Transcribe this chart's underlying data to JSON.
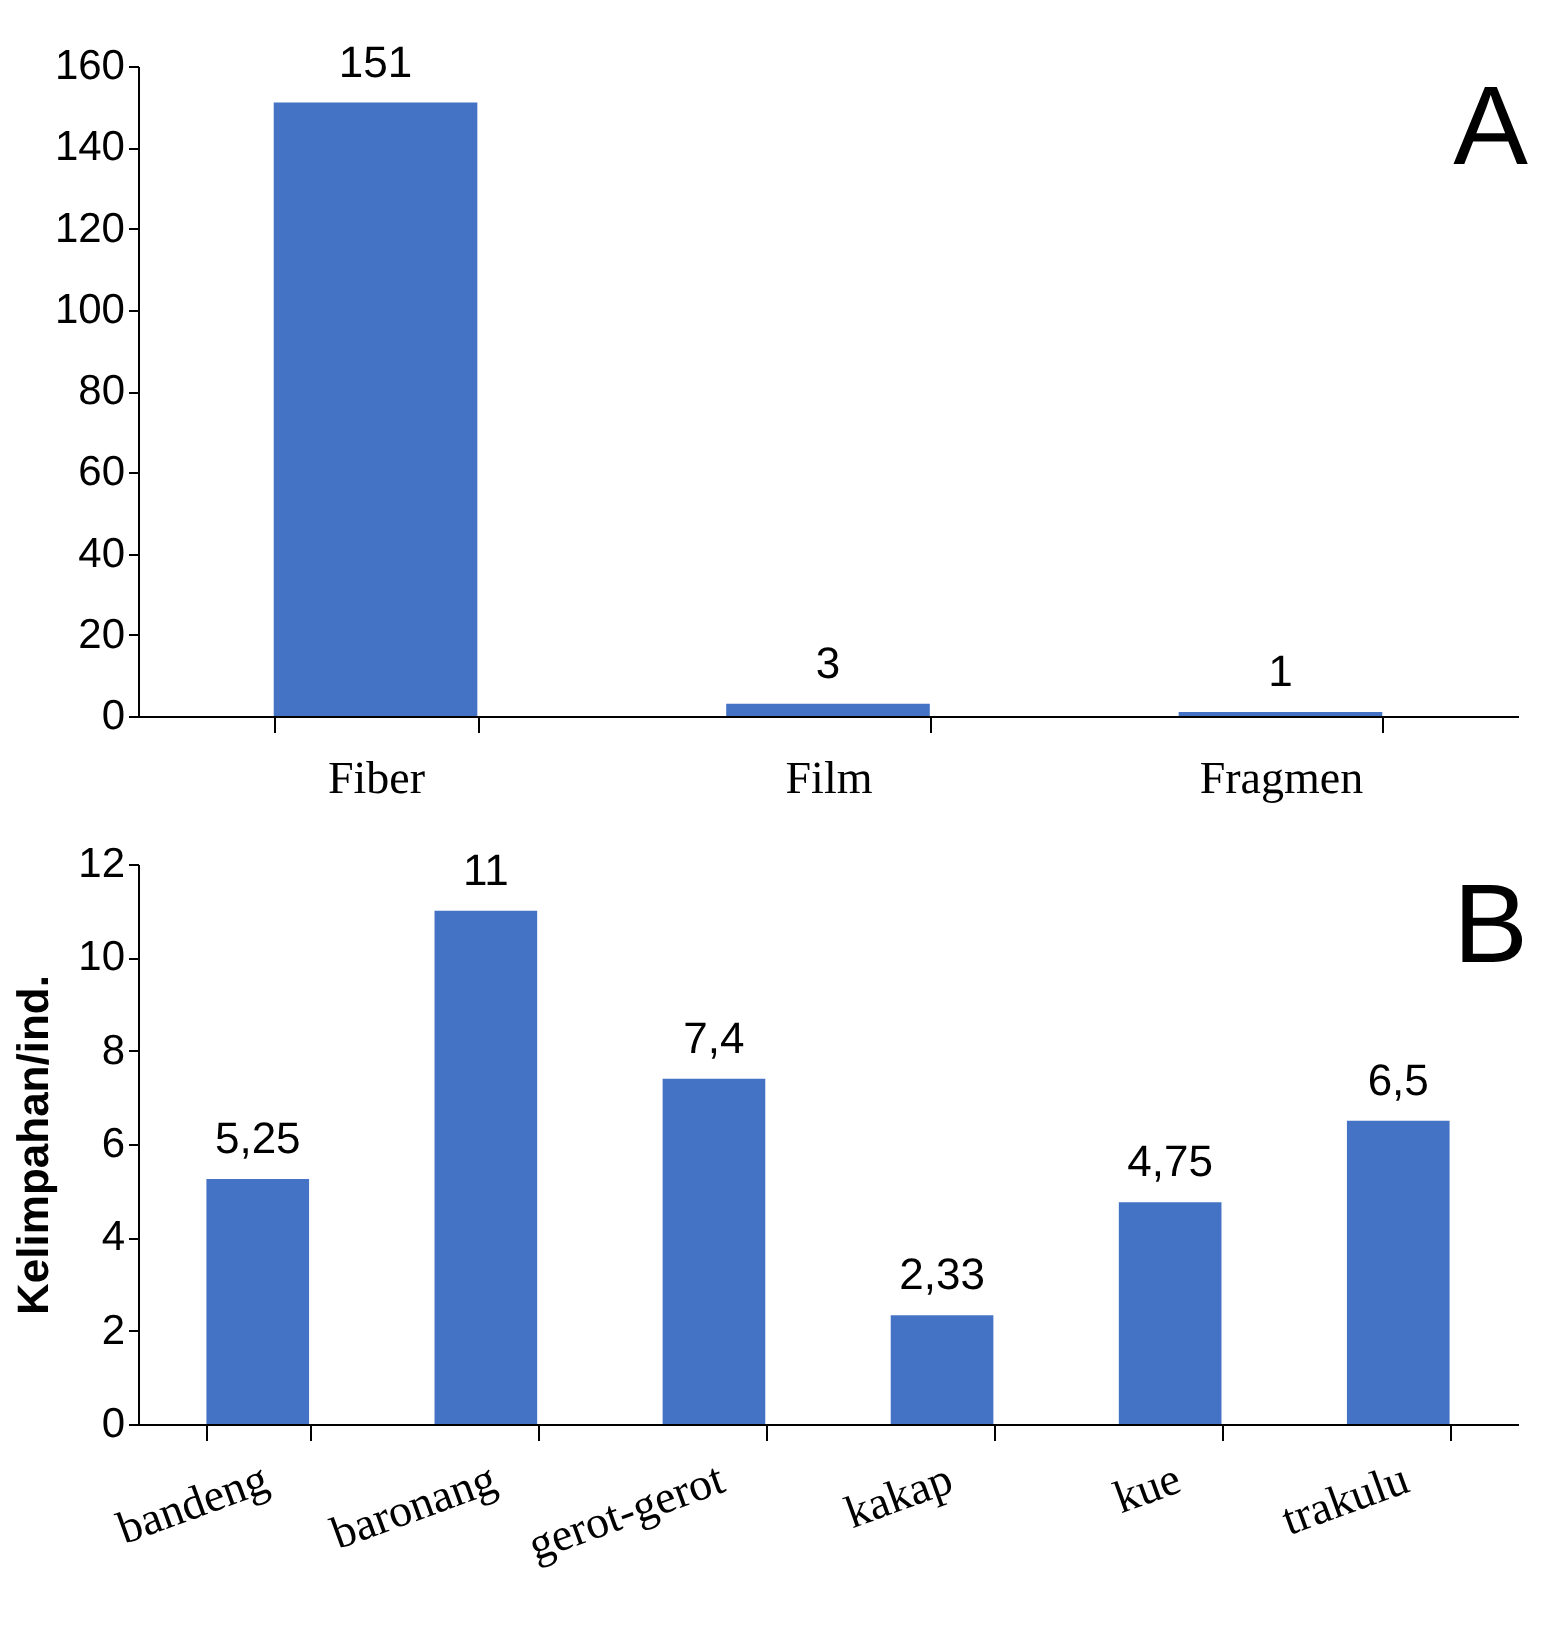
{
  "chart_data": [
    {
      "type": "bar",
      "categories": [
        "Fiber",
        "Film",
        "Fragmen"
      ],
      "values": [
        151,
        3,
        1
      ],
      "color": "#4472c4",
      "ylim": [
        0,
        160
      ],
      "yticks": [
        0,
        20,
        40,
        60,
        80,
        100,
        120,
        140,
        160
      ],
      "grid": false,
      "data_labels": true,
      "annotations": [
        "A"
      ]
    },
    {
      "type": "bar",
      "categories": [
        "bandeng",
        "baronang",
        "gerot-gerot",
        "kakap",
        "kue",
        "trakulu"
      ],
      "values": [
        5.25,
        11,
        7.4,
        2.33,
        4.75,
        6.5
      ],
      "value_labels": [
        "5,25",
        "11",
        "7,4",
        "2,33",
        "4,75",
        "6,5"
      ],
      "color": "#4472c4",
      "ylabel": "Kelimpahan/ind.",
      "ylim": [
        0,
        12
      ],
      "yticks": [
        0,
        2,
        4,
        6,
        8,
        10,
        12
      ],
      "grid": false,
      "annotations": [
        "B"
      ]
    }
  ]
}
